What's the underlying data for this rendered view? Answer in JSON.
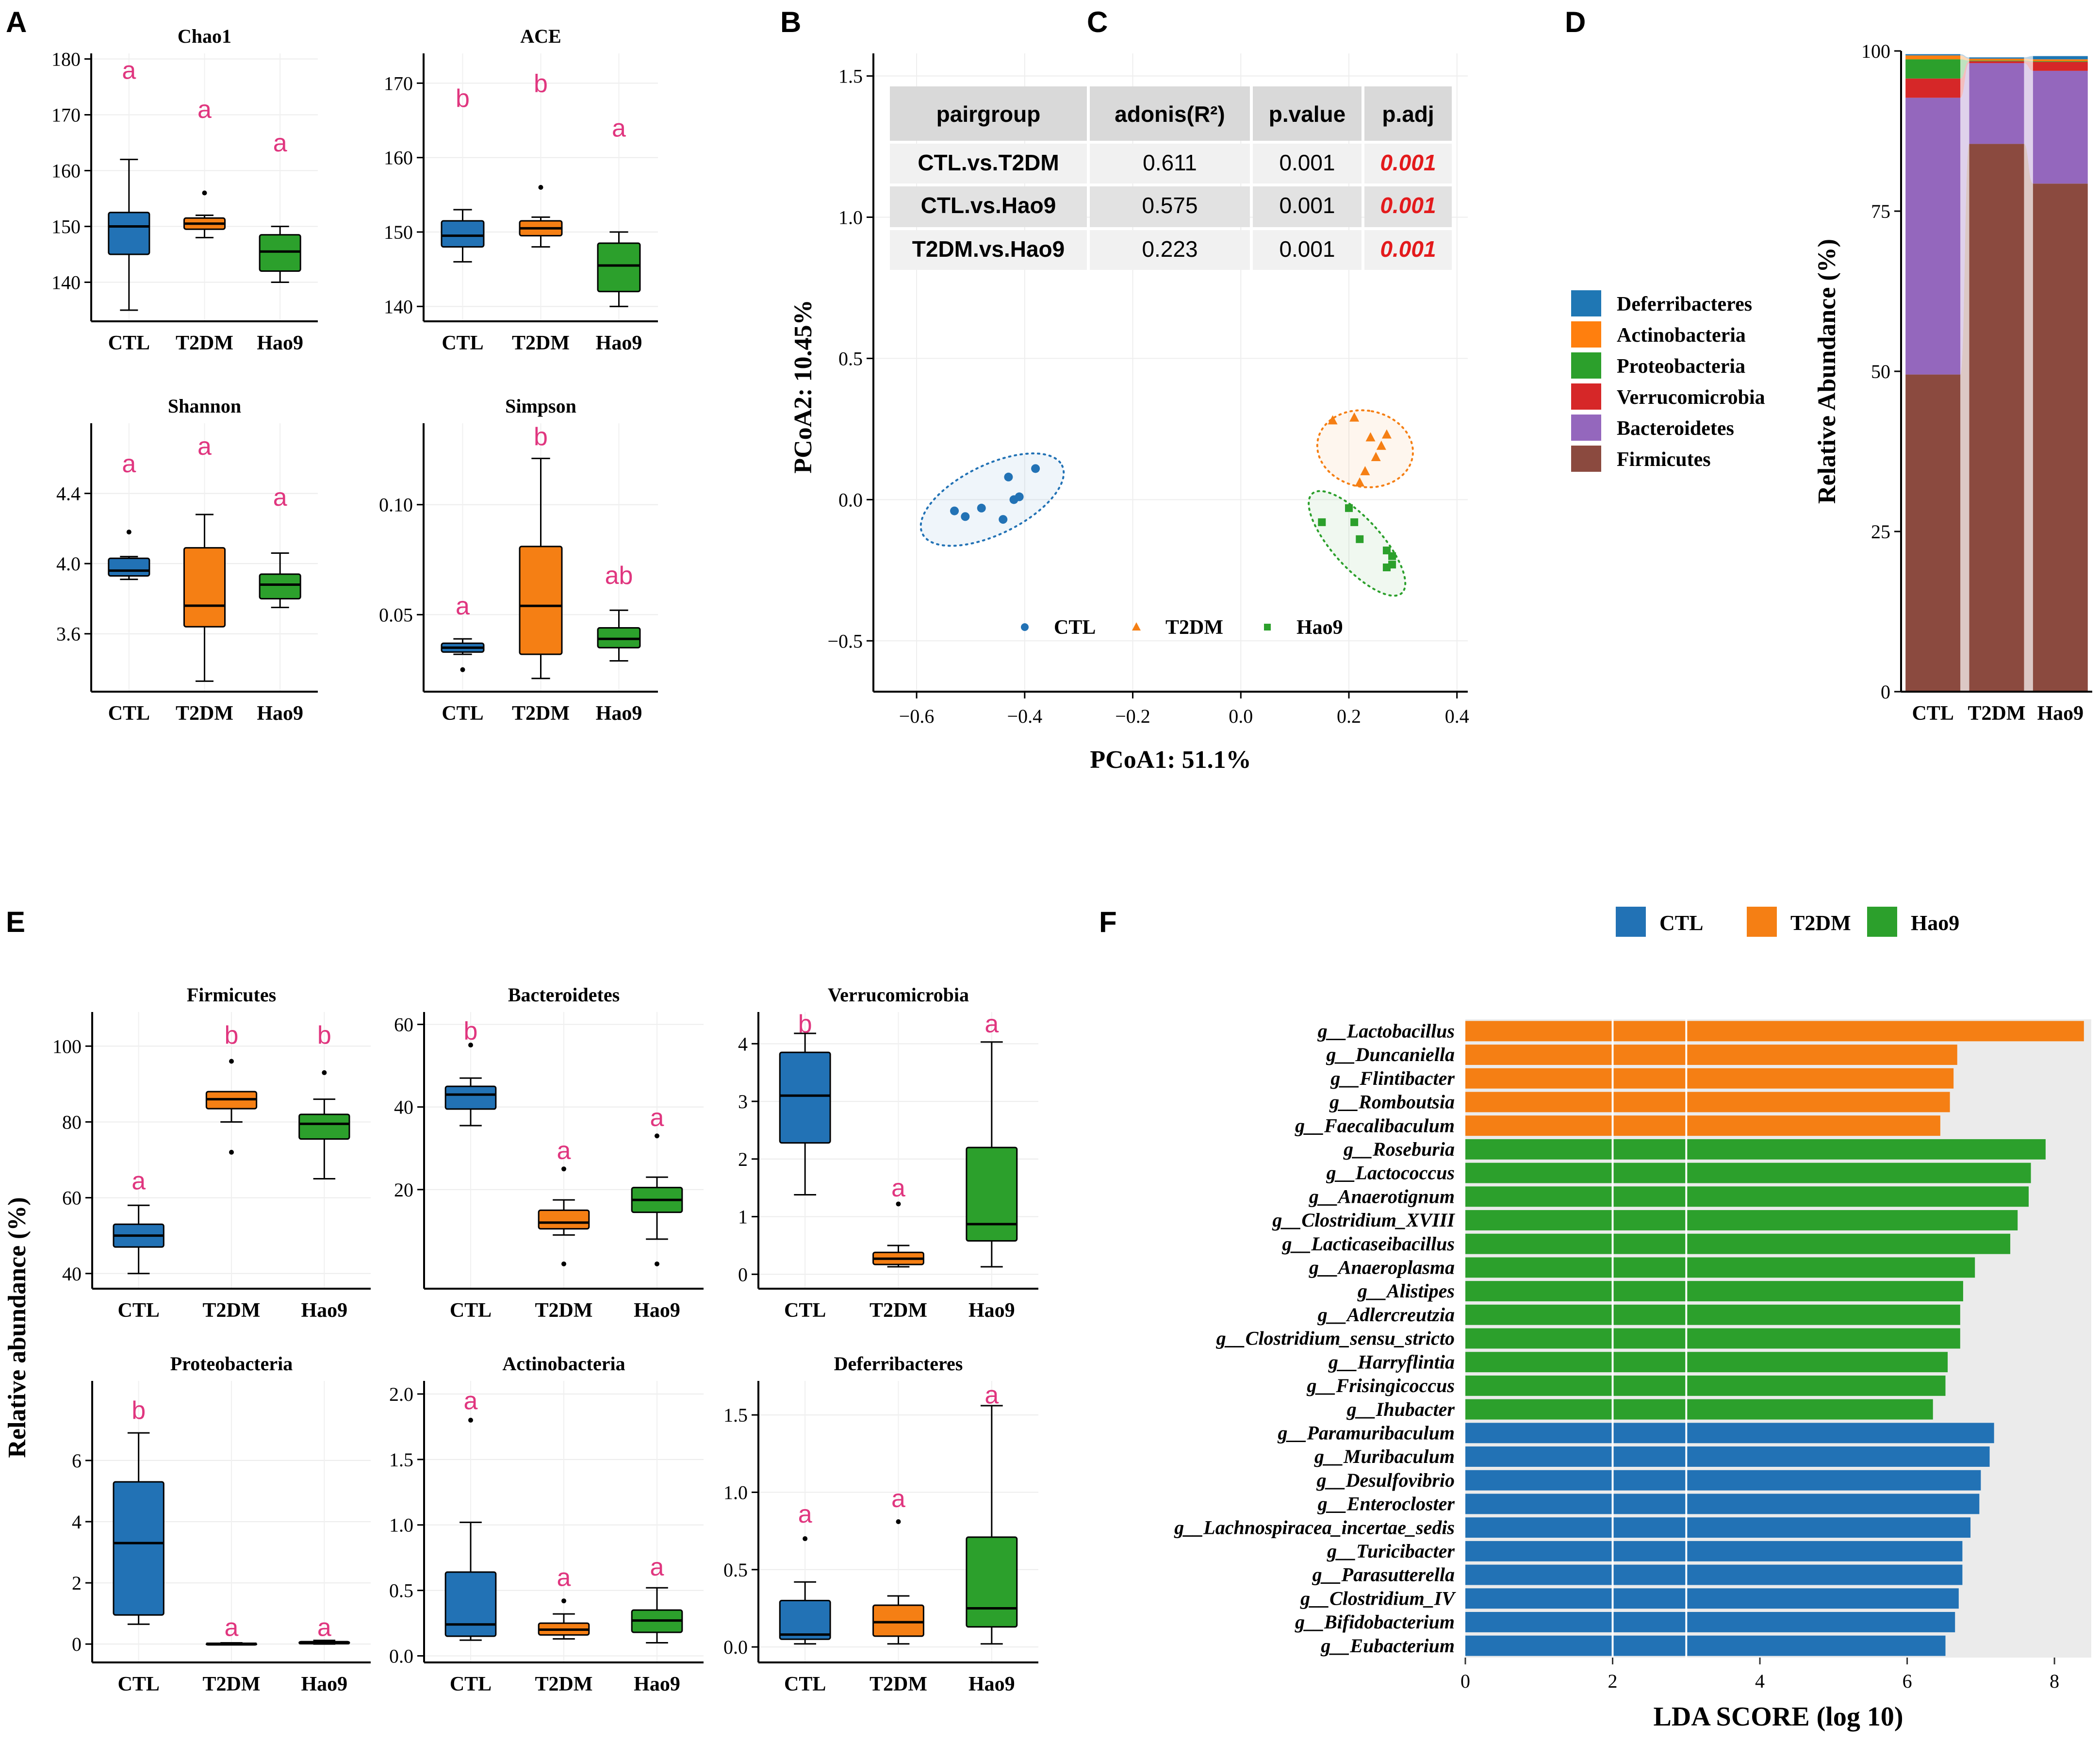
{
  "colors": {
    "CTL": "#2272b5",
    "T2DM": "#f57f14",
    "Hao9": "#2ca02c",
    "letter": "#e0367f",
    "padj": "#e31a1c"
  },
  "panels": [
    "A",
    "B",
    "C",
    "D",
    "E",
    "F"
  ],
  "chart_data": [
    {
      "type": "box",
      "id": "A-chao1",
      "panel": "A",
      "title": "Chao1",
      "categories": [
        "CTL",
        "T2DM",
        "Hao9"
      ],
      "ylim": [
        133,
        181
      ],
      "yticks": [
        140,
        150,
        160,
        170,
        180
      ],
      "boxes": [
        {
          "min": 135,
          "q1": 145,
          "median": 150,
          "q3": 152.5,
          "max": 162,
          "outliers": []
        },
        {
          "min": 148,
          "q1": 149.5,
          "median": 150.5,
          "q3": 151.5,
          "max": 152,
          "outliers": [
            156
          ]
        },
        {
          "min": 140,
          "q1": 142,
          "median": 145.5,
          "q3": 148.5,
          "max": 150,
          "outliers": []
        }
      ],
      "letters": [
        "a",
        "a",
        "a"
      ],
      "letter_y": [
        178,
        171,
        165
      ]
    },
    {
      "type": "box",
      "id": "A-ace",
      "panel": "A",
      "title": "ACE",
      "categories": [
        "CTL",
        "T2DM",
        "Hao9"
      ],
      "ylim": [
        138,
        174
      ],
      "yticks": [
        140,
        150,
        160,
        170
      ],
      "boxes": [
        {
          "min": 146,
          "q1": 148,
          "median": 149.5,
          "q3": 151.5,
          "max": 153,
          "outliers": []
        },
        {
          "min": 148,
          "q1": 149.5,
          "median": 150.5,
          "q3": 151.5,
          "max": 152,
          "outliers": [
            156
          ]
        },
        {
          "min": 140,
          "q1": 142,
          "median": 145.5,
          "q3": 148.5,
          "max": 150,
          "outliers": []
        }
      ],
      "letters": [
        "b",
        "b",
        "a"
      ],
      "letter_y": [
        168,
        170,
        164
      ]
    },
    {
      "type": "box",
      "id": "A-shannon",
      "panel": "A",
      "title": "Shannon",
      "categories": [
        "CTL",
        "T2DM",
        "Hao9"
      ],
      "ylim": [
        3.27,
        4.8
      ],
      "yticks": [
        3.6,
        4.0,
        4.4
      ],
      "ytick_labels": [
        "3.6",
        "4.0",
        "4.4"
      ],
      "boxes": [
        {
          "min": 3.91,
          "q1": 3.93,
          "median": 3.96,
          "q3": 4.03,
          "max": 4.04,
          "outliers": [
            4.18
          ]
        },
        {
          "min": 3.33,
          "q1": 3.64,
          "median": 3.76,
          "q3": 4.09,
          "max": 4.28,
          "outliers": []
        },
        {
          "min": 3.75,
          "q1": 3.8,
          "median": 3.88,
          "q3": 3.94,
          "max": 4.06,
          "outliers": []
        }
      ],
      "letters": [
        "a",
        "a",
        "a"
      ],
      "letter_y": [
        4.57,
        4.67,
        4.38
      ]
    },
    {
      "type": "box",
      "id": "A-simpson",
      "panel": "A",
      "title": "Simpson",
      "categories": [
        "CTL",
        "T2DM",
        "Hao9"
      ],
      "ylim": [
        0.015,
        0.137
      ],
      "yticks": [
        0.05,
        0.1
      ],
      "ytick_labels": [
        "0.05",
        "0.10"
      ],
      "boxes": [
        {
          "min": 0.032,
          "q1": 0.033,
          "median": 0.035,
          "q3": 0.037,
          "max": 0.039,
          "outliers": [
            0.025
          ]
        },
        {
          "min": 0.021,
          "q1": 0.032,
          "median": 0.054,
          "q3": 0.081,
          "max": 0.121,
          "outliers": []
        },
        {
          "min": 0.029,
          "q1": 0.035,
          "median": 0.039,
          "q3": 0.044,
          "max": 0.052,
          "outliers": []
        }
      ],
      "letters": [
        "a",
        "b",
        "ab"
      ],
      "letter_y": [
        0.054,
        0.131,
        0.068
      ]
    },
    {
      "type": "scatter",
      "id": "B-pcoa",
      "panel": "B",
      "xlabel": "PCoA1: 51.1%",
      "ylabel": "PCoA2: 10.45%",
      "xlim": [
        -0.68,
        0.42
      ],
      "ylim": [
        -0.68,
        1.58
      ],
      "xticks": [
        -0.6,
        -0.4,
        -0.2,
        0.0,
        0.2,
        0.4
      ],
      "xtick_labels": [
        "−0.6",
        "−0.4",
        "−0.2",
        "0.0",
        "0.2",
        "0.4"
      ],
      "yticks": [
        -0.5,
        0.0,
        0.5,
        1.0,
        1.5
      ],
      "ytick_labels": [
        "−0.5",
        "0.0",
        "0.5",
        "1.0",
        "1.5"
      ],
      "series": [
        {
          "name": "CTL",
          "marker": "circle",
          "points": [
            [
              -0.53,
              -0.04
            ],
            [
              -0.51,
              -0.06
            ],
            [
              -0.48,
              -0.03
            ],
            [
              -0.44,
              -0.07
            ],
            [
              -0.43,
              0.08
            ],
            [
              -0.42,
              0.0
            ],
            [
              -0.41,
              0.01
            ],
            [
              -0.38,
              0.11
            ]
          ],
          "ellipse": {
            "cx": -0.46,
            "cy": 0.0,
            "rx": 0.155,
            "ry": 0.1,
            "angle": 26
          }
        },
        {
          "name": "T2DM",
          "marker": "triangle",
          "points": [
            [
              0.17,
              0.28
            ],
            [
              0.21,
              0.29
            ],
            [
              0.22,
              0.06
            ],
            [
              0.23,
              0.1
            ],
            [
              0.25,
              0.15
            ],
            [
              0.24,
              0.22
            ],
            [
              0.26,
              0.19
            ],
            [
              0.27,
              0.23
            ]
          ],
          "ellipse": {
            "cx": 0.23,
            "cy": 0.18,
            "rx": 0.13,
            "ry": 0.09,
            "angle": 80
          }
        },
        {
          "name": "Hao9",
          "marker": "square",
          "points": [
            [
              0.15,
              -0.08
            ],
            [
              0.2,
              -0.03
            ],
            [
              0.21,
              -0.08
            ],
            [
              0.22,
              -0.14
            ],
            [
              0.27,
              -0.18
            ],
            [
              0.28,
              -0.2
            ],
            [
              0.28,
              -0.23
            ],
            [
              0.27,
              -0.24
            ]
          ],
          "ellipse": {
            "cx": 0.215,
            "cy": -0.155,
            "rx": 0.16,
            "ry": 0.055,
            "angle": -48
          }
        }
      ]
    },
    {
      "type": "table",
      "id": "C-adonis",
      "panel": "C",
      "headers": [
        "pairgroup",
        "adonis(R²)",
        "p.value",
        "p.adj"
      ],
      "rows": [
        [
          "CTL.vs.T2DM",
          "0.611",
          "0.001",
          "0.001"
        ],
        [
          "CTL.vs.Hao9",
          "0.575",
          "0.001",
          "0.001"
        ],
        [
          "T2DM.vs.Hao9",
          "0.223",
          "0.001",
          "0.001"
        ]
      ]
    },
    {
      "type": "bar",
      "stacked": true,
      "id": "D-stacked",
      "panel": "D",
      "ylabel": "Relative Abundance (%)",
      "categories": [
        "CTL",
        "T2DM",
        "Hao9"
      ],
      "ylim": [
        0,
        100
      ],
      "yticks": [
        0,
        25,
        50,
        75,
        100
      ],
      "series": [
        {
          "name": "Firmicutes",
          "color": "#8b4a3f",
          "values": [
            49.5,
            85.5,
            79.3
          ]
        },
        {
          "name": "Bacteroidetes",
          "color": "#9467bd",
          "values": [
            43.2,
            12.6,
            17.6
          ]
        },
        {
          "name": "Verrucomicrobia",
          "color": "#d62728",
          "values": [
            3.0,
            0.3,
            1.4
          ]
        },
        {
          "name": "Proteobacteria",
          "color": "#2ca02c",
          "values": [
            3.0,
            0.1,
            0.1
          ]
        },
        {
          "name": "Actinobacteria",
          "color": "#ff7f0e",
          "values": [
            0.6,
            0.3,
            0.3
          ]
        },
        {
          "name": "Deferribacteres",
          "color": "#1f77b4",
          "values": [
            0.2,
            0.2,
            0.5
          ]
        }
      ],
      "legend": [
        "Deferribacteres",
        "Actinobacteria",
        "Proteobacteria",
        "Verrucomicrobia",
        "Bacteroidetes",
        "Firmicutes"
      ]
    },
    {
      "type": "box",
      "id": "E-firmicutes",
      "panel": "E",
      "title": "Firmicutes",
      "categories": [
        "CTL",
        "T2DM",
        "Hao9"
      ],
      "ylim": [
        36,
        109
      ],
      "yticks": [
        40,
        60,
        80,
        100
      ],
      "boxes": [
        {
          "min": 40,
          "q1": 47,
          "median": 50,
          "q3": 53,
          "max": 58,
          "outliers": []
        },
        {
          "min": 80,
          "q1": 83.5,
          "median": 86,
          "q3": 88,
          "max": 88,
          "outliers": [
            72,
            96
          ]
        },
        {
          "min": 65,
          "q1": 75.5,
          "median": 79.5,
          "q3": 82,
          "max": 86,
          "outliers": [
            93
          ]
        }
      ],
      "letters": [
        "a",
        "b",
        "b"
      ],
      "letter_y": [
        64.5,
        103,
        103
      ]
    },
    {
      "type": "box",
      "id": "E-bacteroidetes",
      "panel": "E",
      "title": "Bacteroidetes",
      "categories": [
        "CTL",
        "T2DM",
        "Hao9"
      ],
      "ylim": [
        -4,
        63
      ],
      "yticks": [
        20,
        40,
        60
      ],
      "boxes": [
        {
          "min": 35.5,
          "q1": 39.5,
          "median": 43,
          "q3": 45,
          "max": 47,
          "outliers": [
            55
          ]
        },
        {
          "min": 9,
          "q1": 10.5,
          "median": 12,
          "q3": 15,
          "max": 17.5,
          "outliers": [
            2,
            25
          ]
        },
        {
          "min": 8,
          "q1": 14.5,
          "median": 17.5,
          "q3": 20.5,
          "max": 23,
          "outliers": [
            2,
            33
          ]
        }
      ],
      "letters": [
        "b",
        "a",
        "a"
      ],
      "letter_y": [
        58.5,
        29.5,
        37.5
      ]
    },
    {
      "type": "box",
      "id": "E-verrucomicrobia",
      "panel": "E",
      "title": "Verrucomicrobia",
      "categories": [
        "CTL",
        "T2DM",
        "Hao9"
      ],
      "ylim": [
        -0.25,
        4.55
      ],
      "yticks": [
        0,
        1,
        2,
        3,
        4
      ],
      "boxes": [
        {
          "min": 1.38,
          "q1": 2.28,
          "median": 3.1,
          "q3": 3.85,
          "max": 4.18,
          "outliers": []
        },
        {
          "min": 0.13,
          "q1": 0.17,
          "median": 0.27,
          "q3": 0.38,
          "max": 0.5,
          "outliers": [
            1.22
          ]
        },
        {
          "min": 0.13,
          "q1": 0.58,
          "median": 0.87,
          "q3": 2.2,
          "max": 4.03,
          "outliers": []
        }
      ],
      "letters": [
        "b",
        "a",
        "a"
      ],
      "letter_y": [
        4.35,
        1.5,
        4.35
      ]
    },
    {
      "type": "box",
      "id": "E-proteobacteria",
      "panel": "E",
      "title": "Proteobacteria",
      "categories": [
        "CTL",
        "T2DM",
        "Hao9"
      ],
      "ylim": [
        -0.6,
        8.6
      ],
      "yticks": [
        0,
        2,
        4,
        6
      ],
      "boxes": [
        {
          "min": 0.65,
          "q1": 0.95,
          "median": 3.3,
          "q3": 5.3,
          "max": 6.9,
          "outliers": []
        },
        {
          "min": 0.0,
          "q1": 0.0,
          "median": 0.01,
          "q3": 0.02,
          "max": 0.04,
          "outliers": []
        },
        {
          "min": 0.0,
          "q1": 0.01,
          "median": 0.03,
          "q3": 0.08,
          "max": 0.12,
          "outliers": []
        }
      ],
      "letters": [
        "b",
        "a",
        "a"
      ],
      "letter_y": [
        7.65,
        0.55,
        0.55
      ]
    },
    {
      "type": "box",
      "id": "E-actinobacteria",
      "panel": "E",
      "title": "Actinobacteria",
      "categories": [
        "CTL",
        "T2DM",
        "Hao9"
      ],
      "ylim": [
        -0.05,
        2.1
      ],
      "yticks": [
        0.0,
        0.5,
        1.0,
        1.5,
        2.0
      ],
      "ytick_labels": [
        "0.0",
        "0.5",
        "1.0",
        "1.5",
        "2.0"
      ],
      "boxes": [
        {
          "min": 0.12,
          "q1": 0.15,
          "median": 0.24,
          "q3": 0.64,
          "max": 1.02,
          "outliers": [
            1.8
          ]
        },
        {
          "min": 0.13,
          "q1": 0.16,
          "median": 0.2,
          "q3": 0.25,
          "max": 0.32,
          "outliers": [
            0.42
          ]
        },
        {
          "min": 0.1,
          "q1": 0.18,
          "median": 0.27,
          "q3": 0.35,
          "max": 0.52,
          "outliers": []
        }
      ],
      "letters": [
        "a",
        "a",
        "a"
      ],
      "letter_y": [
        1.95,
        0.6,
        0.68
      ]
    },
    {
      "type": "box",
      "id": "E-deferribacteres",
      "panel": "E",
      "title": "Deferribacteres",
      "categories": [
        "CTL",
        "T2DM",
        "Hao9"
      ],
      "ylim": [
        -0.1,
        1.72
      ],
      "yticks": [
        0.0,
        0.5,
        1.0,
        1.5
      ],
      "ytick_labels": [
        "0.0",
        "0.5",
        "1.0",
        "1.5"
      ],
      "boxes": [
        {
          "min": 0.02,
          "q1": 0.05,
          "median": 0.08,
          "q3": 0.3,
          "max": 0.42,
          "outliers": [
            0.7
          ]
        },
        {
          "min": 0.02,
          "q1": 0.07,
          "median": 0.16,
          "q3": 0.27,
          "max": 0.33,
          "outliers": [
            0.81
          ]
        },
        {
          "min": 0.02,
          "q1": 0.13,
          "median": 0.25,
          "q3": 0.71,
          "max": 1.56,
          "outliers": []
        }
      ],
      "letters": [
        "a",
        "a",
        "a"
      ],
      "letter_y": [
        0.86,
        0.96,
        1.63
      ]
    },
    {
      "type": "bar",
      "orientation": "horizontal",
      "id": "F-lefse",
      "panel": "F",
      "xlabel": "LDA SCORE (log 10)",
      "xlim": [
        0,
        8.5
      ],
      "xticks": [
        0,
        2,
        4,
        6,
        8
      ],
      "gridlines": [
        2,
        3
      ],
      "legend": [
        "CTL",
        "T2DM",
        "Hao9"
      ],
      "bars": [
        {
          "label": "g__Lactobacillus",
          "group": "T2DM",
          "value": 8.4
        },
        {
          "label": "g__Duncaniella",
          "group": "T2DM",
          "value": 6.68
        },
        {
          "label": "g__Flintibacter",
          "group": "T2DM",
          "value": 6.63
        },
        {
          "label": "g__Romboutsia",
          "group": "T2DM",
          "value": 6.58
        },
        {
          "label": "g__Faecalibaculum",
          "group": "T2DM",
          "value": 6.45
        },
        {
          "label": "g__Roseburia",
          "group": "Hao9",
          "value": 7.88
        },
        {
          "label": "g__Lactococcus",
          "group": "Hao9",
          "value": 7.68
        },
        {
          "label": "g__Anaerotignum",
          "group": "Hao9",
          "value": 7.65
        },
        {
          "label": "g__Clostridium_XVIII",
          "group": "Hao9",
          "value": 7.5
        },
        {
          "label": "g__Lacticaseibacillus",
          "group": "Hao9",
          "value": 7.4
        },
        {
          "label": "g__Anaeroplasma",
          "group": "Hao9",
          "value": 6.92
        },
        {
          "label": "g__Alistipes",
          "group": "Hao9",
          "value": 6.76
        },
        {
          "label": "g__Adlercreutzia",
          "group": "Hao9",
          "value": 6.72
        },
        {
          "label": "g__Clostridium_sensu_stricto",
          "group": "Hao9",
          "value": 6.72
        },
        {
          "label": "g__Harryflintia",
          "group": "Hao9",
          "value": 6.55
        },
        {
          "label": "g__Frisingicoccus",
          "group": "Hao9",
          "value": 6.52
        },
        {
          "label": "g__Ihubacter",
          "group": "Hao9",
          "value": 6.35
        },
        {
          "label": "g__Paramuribaculum",
          "group": "CTL",
          "value": 7.18
        },
        {
          "label": "g__Muribaculum",
          "group": "CTL",
          "value": 7.12
        },
        {
          "label": "g__Desulfovibrio",
          "group": "CTL",
          "value": 7.0
        },
        {
          "label": "g__Enterocloster",
          "group": "CTL",
          "value": 6.98
        },
        {
          "label": "g__Lachnospiracea_incertae_sedis",
          "group": "CTL",
          "value": 6.86
        },
        {
          "label": "g__Turicibacter",
          "group": "CTL",
          "value": 6.75
        },
        {
          "label": "g__Parasutterella",
          "group": "CTL",
          "value": 6.75
        },
        {
          "label": "g__Clostridium_IV",
          "group": "CTL",
          "value": 6.7
        },
        {
          "label": "g__Bifidobacterium",
          "group": "CTL",
          "value": 6.65
        },
        {
          "label": "g__Eubacterium",
          "group": "CTL",
          "value": 6.52
        }
      ]
    }
  ],
  "e_ylabel": "Relative abundance (%)"
}
